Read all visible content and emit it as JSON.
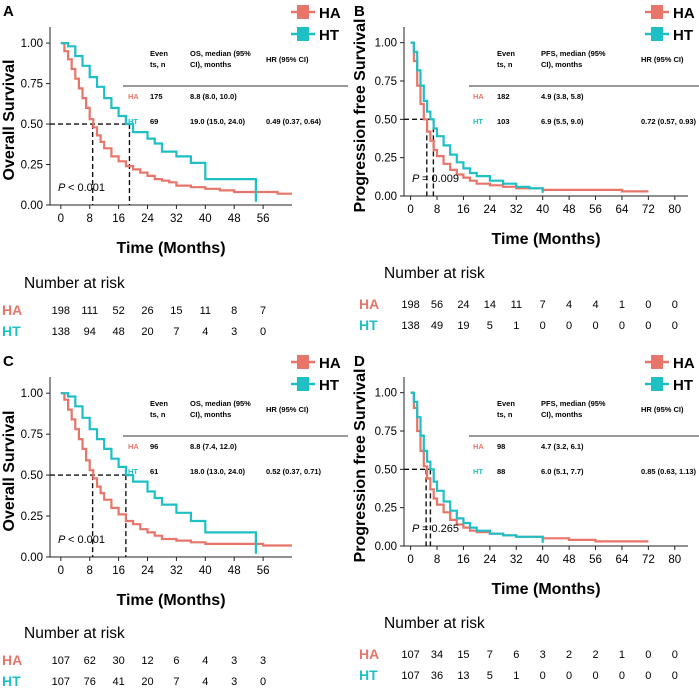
{
  "chart_data": [
    {
      "type": "line",
      "panel": "A",
      "ylabel": "Overall Survival",
      "xlabel": "Time (Months)",
      "xticks": [
        "0",
        "8",
        "16",
        "24",
        "32",
        "40",
        "48",
        "56"
      ],
      "yticks": [
        "0.00",
        "0.25",
        "0.50",
        "0.75",
        "1.00"
      ],
      "xlim": [
        -3,
        64
      ],
      "ylim": [
        0,
        1.05
      ],
      "legend": "top-right",
      "series": [
        {
          "name": "HA",
          "color": "#e8756a",
          "x": [
            0,
            1,
            2,
            3,
            4,
            5,
            6,
            7,
            8,
            9,
            10,
            11,
            12,
            14,
            16,
            18,
            20,
            22,
            24,
            26,
            28,
            30,
            32,
            36,
            40,
            44,
            48,
            52,
            56,
            60,
            64
          ],
          "y": [
            1,
            0.95,
            0.9,
            0.84,
            0.78,
            0.72,
            0.66,
            0.6,
            0.53,
            0.48,
            0.43,
            0.39,
            0.35,
            0.3,
            0.27,
            0.24,
            0.22,
            0.2,
            0.18,
            0.16,
            0.15,
            0.14,
            0.12,
            0.11,
            0.1,
            0.09,
            0.08,
            0.08,
            0.08,
            0.07,
            0.07
          ]
        },
        {
          "name": "HT",
          "color": "#1fbfc6",
          "x": [
            0,
            2,
            4,
            6,
            8,
            10,
            12,
            14,
            16,
            18,
            20,
            24,
            26,
            28,
            32,
            36,
            40,
            44,
            48,
            52,
            54,
            54
          ],
          "y": [
            1,
            0.98,
            0.92,
            0.86,
            0.79,
            0.73,
            0.66,
            0.6,
            0.55,
            0.5,
            0.45,
            0.41,
            0.38,
            0.33,
            0.3,
            0.26,
            0.16,
            0.16,
            0.16,
            0.16,
            0.16,
            0.02
          ]
        }
      ],
      "medians": [
        8.8,
        19.0
      ],
      "pvalue": "P < 0.001",
      "table": {
        "headers": [
          "Even ts, n",
          "OS, median (95% CI), months",
          "HR (95% CI)"
        ],
        "rows": [
          {
            "group": "HA",
            "events": "175",
            "median": "8.8 (8.0, 10.0)",
            "hr": ""
          },
          {
            "group": "HT",
            "events": "69",
            "median": "19.0 (15.0, 24.0)",
            "hr": "0.49 (0.37, 0.64)"
          }
        ]
      },
      "risk": {
        "title": "Number at risk",
        "HA": [
          "198",
          "111",
          "52",
          "26",
          "15",
          "11",
          "8",
          "7"
        ],
        "HT": [
          "138",
          "94",
          "48",
          "20",
          "7",
          "4",
          "3",
          "0"
        ]
      }
    },
    {
      "type": "line",
      "panel": "B",
      "ylabel": "Progression free Survival",
      "xlabel": "Time (Months)",
      "xticks": [
        "0",
        "8",
        "16",
        "24",
        "32",
        "40",
        "48",
        "56",
        "64",
        "72",
        "80"
      ],
      "yticks": [
        "0.00",
        "0.25",
        "0.50",
        "0.75",
        "1.00"
      ],
      "xlim": [
        -2,
        84
      ],
      "ylim": [
        0,
        1.05
      ],
      "legend": "top-right",
      "series": [
        {
          "name": "HA",
          "color": "#e8756a",
          "x": [
            0,
            1,
            2,
            3,
            4,
            5,
            6,
            7,
            8,
            10,
            12,
            14,
            16,
            18,
            20,
            24,
            28,
            32,
            40,
            48,
            56,
            64,
            72
          ],
          "y": [
            1,
            0.88,
            0.72,
            0.6,
            0.5,
            0.42,
            0.36,
            0.3,
            0.26,
            0.21,
            0.17,
            0.14,
            0.12,
            0.1,
            0.08,
            0.07,
            0.06,
            0.05,
            0.04,
            0.04,
            0.04,
            0.03,
            0.03
          ]
        },
        {
          "name": "HT",
          "color": "#1fbfc6",
          "x": [
            0,
            1,
            2,
            3,
            4,
            5,
            6,
            7,
            8,
            10,
            12,
            14,
            16,
            18,
            20,
            24,
            28,
            32,
            36,
            40,
            40
          ],
          "y": [
            1,
            0.94,
            0.82,
            0.72,
            0.62,
            0.55,
            0.5,
            0.44,
            0.39,
            0.33,
            0.27,
            0.22,
            0.18,
            0.15,
            0.13,
            0.1,
            0.08,
            0.06,
            0.05,
            0.05,
            0.02
          ]
        }
      ],
      "medians": [
        4.9,
        6.9
      ],
      "pvalue": "P = 0.009",
      "table": {
        "headers": [
          "Even ts, n",
          "PFS, median (95% CI), months",
          "HR (95% CI)"
        ],
        "rows": [
          {
            "group": "HA",
            "events": "182",
            "median": "4.9 (3.8, 5.8)",
            "hr": ""
          },
          {
            "group": "HT",
            "events": "103",
            "median": "6.9 (5.5, 9.0)",
            "hr": "0.72 (0.57, 0.93)"
          }
        ]
      },
      "risk": {
        "title": "Number at risk",
        "HA": [
          "198",
          "56",
          "24",
          "14",
          "11",
          "7",
          "4",
          "4",
          "1",
          "0",
          "0"
        ],
        "HT": [
          "138",
          "49",
          "19",
          "5",
          "1",
          "0",
          "0",
          "0",
          "0",
          "0",
          "0"
        ]
      }
    },
    {
      "type": "line",
      "panel": "C",
      "ylabel": "Overall Survival",
      "xlabel": "Time (Months)",
      "xticks": [
        "0",
        "8",
        "16",
        "24",
        "32",
        "40",
        "48",
        "56"
      ],
      "yticks": [
        "0.00",
        "0.25",
        "0.50",
        "0.75",
        "1.00"
      ],
      "xlim": [
        -3,
        64
      ],
      "ylim": [
        0,
        1.05
      ],
      "legend": "top-right",
      "series": [
        {
          "name": "HA",
          "color": "#e8756a",
          "x": [
            0,
            1,
            2,
            3,
            4,
            5,
            6,
            7,
            8,
            9,
            10,
            11,
            12,
            14,
            16,
            18,
            20,
            22,
            24,
            26,
            28,
            32,
            36,
            40,
            48,
            56,
            64
          ],
          "y": [
            1,
            0.96,
            0.9,
            0.84,
            0.78,
            0.72,
            0.66,
            0.59,
            0.53,
            0.48,
            0.43,
            0.39,
            0.35,
            0.3,
            0.26,
            0.22,
            0.2,
            0.17,
            0.15,
            0.13,
            0.11,
            0.1,
            0.09,
            0.08,
            0.08,
            0.07,
            0.07
          ]
        },
        {
          "name": "HT",
          "color": "#1fbfc6",
          "x": [
            0,
            2,
            4,
            6,
            8,
            10,
            12,
            14,
            16,
            18,
            20,
            24,
            26,
            28,
            32,
            36,
            40,
            44,
            48,
            52,
            54,
            54
          ],
          "y": [
            1,
            0.98,
            0.92,
            0.85,
            0.78,
            0.72,
            0.66,
            0.6,
            0.55,
            0.5,
            0.46,
            0.4,
            0.36,
            0.32,
            0.27,
            0.22,
            0.15,
            0.15,
            0.15,
            0.15,
            0.15,
            0.02
          ]
        }
      ],
      "medians": [
        8.8,
        18.0
      ],
      "pvalue": "P < 0.001",
      "table": {
        "headers": [
          "Even ts, n",
          "OS, median (95% CI), months",
          "HR (95% CI)"
        ],
        "rows": [
          {
            "group": "HA",
            "events": "96",
            "median": "8.8 (7.4, 12.0)",
            "hr": ""
          },
          {
            "group": "HT",
            "events": "61",
            "median": "18.0 (13.0, 24.0)",
            "hr": "0.52 (0.37, 0.71)"
          }
        ]
      },
      "risk": {
        "title": "Number at risk",
        "HA": [
          "107",
          "62",
          "30",
          "12",
          "6",
          "4",
          "3",
          "3"
        ],
        "HT": [
          "107",
          "76",
          "41",
          "20",
          "7",
          "4",
          "3",
          "0"
        ]
      }
    },
    {
      "type": "line",
      "panel": "D",
      "ylabel": "Progression free Survival",
      "xlabel": "Time (Months)",
      "xticks": [
        "0",
        "8",
        "16",
        "24",
        "32",
        "40",
        "48",
        "56",
        "64",
        "72",
        "80"
      ],
      "yticks": [
        "0.00",
        "0.25",
        "0.50",
        "0.75",
        "1.00"
      ],
      "xlim": [
        -2,
        84
      ],
      "ylim": [
        0,
        1.05
      ],
      "legend": "top-right",
      "series": [
        {
          "name": "HA",
          "color": "#e8756a",
          "x": [
            0,
            1,
            2,
            3,
            4,
            5,
            6,
            7,
            8,
            10,
            12,
            14,
            16,
            18,
            20,
            24,
            28,
            32,
            40,
            48,
            56,
            64,
            72
          ],
          "y": [
            1,
            0.9,
            0.75,
            0.62,
            0.52,
            0.44,
            0.37,
            0.31,
            0.27,
            0.22,
            0.17,
            0.14,
            0.12,
            0.1,
            0.09,
            0.08,
            0.07,
            0.06,
            0.05,
            0.04,
            0.03,
            0.03,
            0.03
          ]
        },
        {
          "name": "HT",
          "color": "#1fbfc6",
          "x": [
            0,
            1,
            2,
            3,
            4,
            5,
            6,
            7,
            8,
            10,
            12,
            14,
            16,
            18,
            20,
            24,
            28,
            32,
            36,
            40,
            40
          ],
          "y": [
            1,
            0.94,
            0.84,
            0.72,
            0.62,
            0.55,
            0.5,
            0.42,
            0.36,
            0.29,
            0.23,
            0.18,
            0.15,
            0.12,
            0.1,
            0.08,
            0.07,
            0.06,
            0.06,
            0.06,
            0.02
          ]
        }
      ],
      "medians": [
        4.7,
        6.0
      ],
      "pvalue": "P = 0.265",
      "table": {
        "headers": [
          "Even ts, n",
          "PFS, median (95% CI), months",
          "HR (95% CI)"
        ],
        "rows": [
          {
            "group": "HA",
            "events": "98",
            "median": "4.7 (3.2, 6.1)",
            "hr": ""
          },
          {
            "group": "HT",
            "events": "88",
            "median": "6.0 (5.1, 7.7)",
            "hr": "0.85 (0.63, 1.13)"
          }
        ]
      },
      "risk": {
        "title": "Number at risk",
        "HA": [
          "107",
          "34",
          "15",
          "7",
          "6",
          "3",
          "2",
          "2",
          "1",
          "0",
          "0"
        ],
        "HT": [
          "107",
          "36",
          "13",
          "5",
          "1",
          "0",
          "0",
          "0",
          "0",
          "0",
          "0"
        ]
      }
    }
  ]
}
